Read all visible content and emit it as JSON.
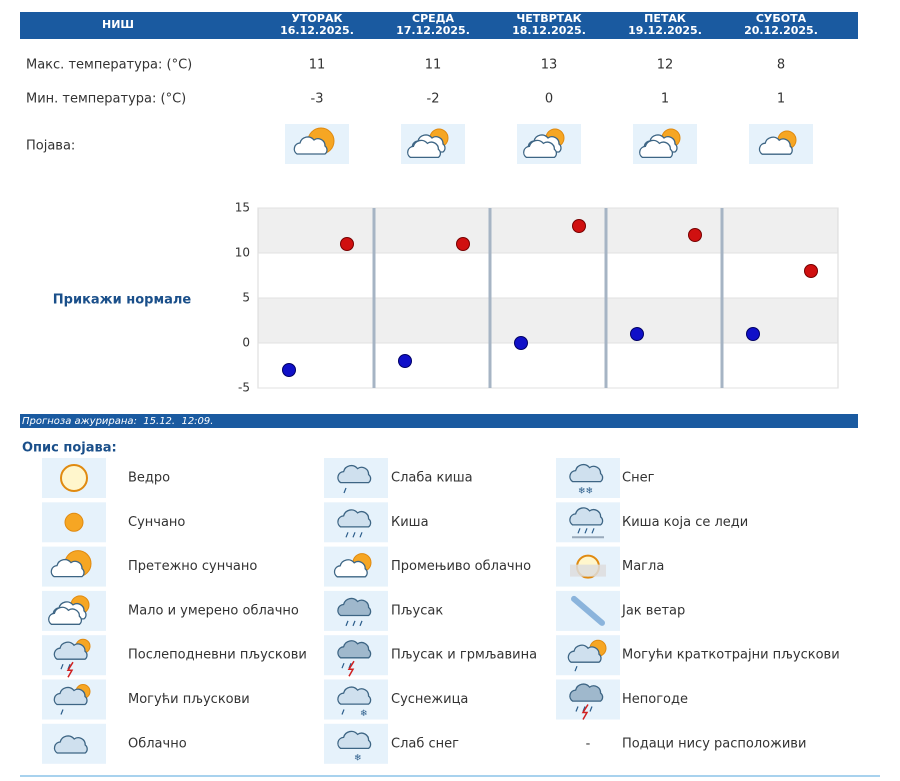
{
  "header": {
    "city": "НИШ",
    "days": [
      {
        "name": "УТОРАК",
        "date": "16.12.2025."
      },
      {
        "name": "СРЕДА",
        "date": "17.12.2025."
      },
      {
        "name": "ЧЕТВРТАК",
        "date": "18.12.2025."
      },
      {
        "name": "ПЕТАК",
        "date": "19.12.2025."
      },
      {
        "name": "СУБОТА",
        "date": "20.12.2025."
      }
    ]
  },
  "table": {
    "max": {
      "label": "Макс. температура: (°C)",
      "values": [
        11,
        11,
        13,
        12,
        8
      ]
    },
    "min": {
      "label": "Мин. температура: (°C)",
      "values": [
        -3,
        -2,
        0,
        1,
        1
      ]
    },
    "phenomenon": {
      "label": "Појава:"
    }
  },
  "chart": {
    "ylim": [
      -5,
      15
    ],
    "yticks": [
      -5,
      0,
      5,
      10,
      15
    ],
    "link": "Прикажи нормале"
  },
  "update": "Прогноза ажурирана:  15.12.  12:09.",
  "legend": {
    "title": "Опис појава:",
    "items": [
      {
        "label": "Ведро"
      },
      {
        "label": "Сунчано"
      },
      {
        "label": "Претежно сунчано"
      },
      {
        "label": "Мало и умерено облачно"
      },
      {
        "label": "Послеподневни пљускови"
      },
      {
        "label": "Могући пљускови"
      },
      {
        "label": "Облачно"
      },
      {
        "label": "Слаба киша"
      },
      {
        "label": "Киша"
      },
      {
        "label": "Промењиво облачно"
      },
      {
        "label": "Пљусак"
      },
      {
        "label": "Пљусак и грмљавина"
      },
      {
        "label": "Суснежица"
      },
      {
        "label": "Слаб снег"
      },
      {
        "label": "Снег"
      },
      {
        "label": "Киша која се леди"
      },
      {
        "label": "Магла"
      },
      {
        "label": "Јак ветар"
      },
      {
        "label": "Могући краткотрајни пљускови"
      },
      {
        "label": "Непогоде"
      },
      {
        "label": "Подаци нису расположиви",
        "symbol": "-"
      }
    ]
  }
}
